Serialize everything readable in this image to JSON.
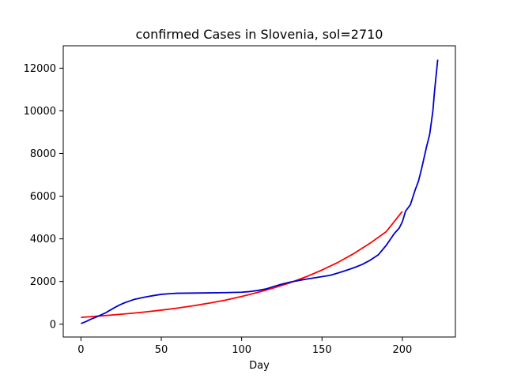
{
  "chart_data": {
    "type": "line",
    "title": "confirmed Cases in Slovenia, sol=2710",
    "xlabel": "Day",
    "ylabel": "",
    "xlim": [
      -11,
      233
    ],
    "ylim": [
      -600,
      13050
    ],
    "xticks": [
      0,
      50,
      100,
      150,
      200
    ],
    "yticks": [
      0,
      2000,
      4000,
      6000,
      8000,
      10000,
      12000
    ],
    "grid": false,
    "legend": "none",
    "series": [
      {
        "color": "#ff0000",
        "x": [
          0,
          10,
          20,
          30,
          40,
          50,
          60,
          70,
          80,
          90,
          100,
          110,
          120,
          130,
          140,
          150,
          160,
          170,
          180,
          190,
          200
        ],
        "y": [
          320,
          375,
          435,
          500,
          575,
          660,
          755,
          865,
          990,
          1130,
          1300,
          1490,
          1700,
          1940,
          2220,
          2540,
          2900,
          3320,
          3800,
          4340,
          5290
        ]
      },
      {
        "color": "#0000cc",
        "x": [
          0,
          3,
          6,
          9,
          12,
          15,
          18,
          21,
          24,
          27,
          30,
          33,
          36,
          39,
          42,
          45,
          50,
          55,
          60,
          70,
          80,
          90,
          100,
          105,
          110,
          115,
          120,
          125,
          130,
          135,
          140,
          145,
          150,
          155,
          160,
          165,
          170,
          175,
          180,
          185,
          190,
          195,
          198,
          200,
          202,
          205,
          208,
          210,
          212,
          215,
          217,
          219,
          220,
          222
        ],
        "y": [
          30,
          120,
          230,
          320,
          420,
          520,
          650,
          780,
          900,
          1000,
          1080,
          1160,
          1210,
          1260,
          1300,
          1340,
          1400,
          1430,
          1450,
          1460,
          1470,
          1480,
          1500,
          1530,
          1580,
          1650,
          1770,
          1880,
          1970,
          2040,
          2110,
          2170,
          2230,
          2290,
          2400,
          2520,
          2650,
          2800,
          3000,
          3250,
          3700,
          4250,
          4500,
          4800,
          5300,
          5600,
          6300,
          6700,
          7300,
          8300,
          8900,
          10000,
          10900,
          12400
        ]
      }
    ]
  }
}
